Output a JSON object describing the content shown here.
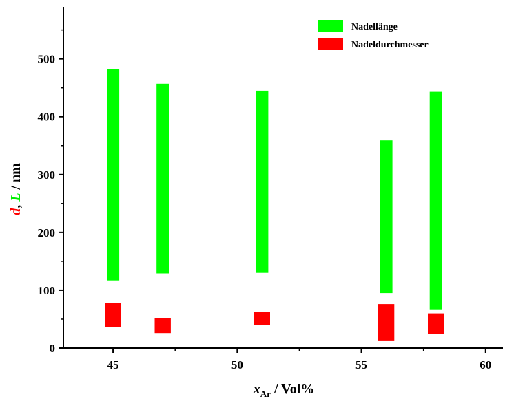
{
  "chart_data": {
    "type": "bar",
    "subtype": "floating-range",
    "x_ticks": [
      45,
      50,
      55,
      60
    ],
    "y_ticks": [
      0,
      100,
      200,
      300,
      400,
      500
    ],
    "xlim": [
      43,
      60.7
    ],
    "ylim": [
      0,
      590
    ],
    "xlabel": {
      "main": "x",
      "sub": "Ar",
      "rest": " / Vol%"
    },
    "ylabel": {
      "d": "d",
      "sep": ", ",
      "L": "L",
      "rest": " / nm",
      "d_color": "#ff0000",
      "L_color": "#00ee00"
    },
    "legend": {
      "position": "top-right",
      "entries": [
        {
          "label": "Nadellänge",
          "color": "#00ff00"
        },
        {
          "label": "Nadeldurchmesser",
          "color": "#ff0000"
        }
      ]
    },
    "series": [
      {
        "name": "Nadellänge",
        "color": "#00ff00",
        "bar_width_x": 0.5,
        "points": [
          {
            "x": 45,
            "low": 117,
            "high": 483
          },
          {
            "x": 47,
            "low": 129,
            "high": 457
          },
          {
            "x": 51,
            "low": 130,
            "high": 445
          },
          {
            "x": 56,
            "low": 95,
            "high": 359
          },
          {
            "x": 58,
            "low": 67,
            "high": 443
          }
        ]
      },
      {
        "name": "Nadeldurchmesser",
        "color": "#ff0000",
        "bar_width_x": 0.65,
        "points": [
          {
            "x": 45,
            "low": 36,
            "high": 78
          },
          {
            "x": 47,
            "low": 26,
            "high": 52
          },
          {
            "x": 51,
            "low": 40,
            "high": 62
          },
          {
            "x": 56,
            "low": 12,
            "high": 76
          },
          {
            "x": 58,
            "low": 24,
            "high": 60
          }
        ]
      }
    ]
  }
}
